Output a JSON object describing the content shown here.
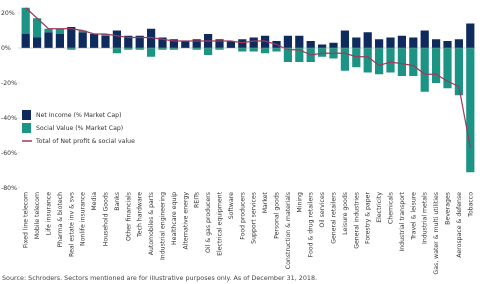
{
  "chart_data": {
    "type": "bar",
    "stacked": true,
    "categories": [
      "Fixed line telecom",
      "Mobile telecom",
      "Life insurance",
      "Pharma & biotech",
      "Real estate inv & svs",
      "Nonlife insurance",
      "Media",
      "Household Goods",
      "Banks",
      "Other financials",
      "Tech hardware",
      "Automobiles & parts",
      "Industrial engineering",
      "Healthcare equip",
      "Alternative energy",
      "REITs",
      "Oil & gas producers",
      "Electrical equipment",
      "Software",
      "Food producers",
      "Support services",
      "Market",
      "Personal goods",
      "Construction & materials",
      "Mining",
      "Food & drug retailers",
      "Oil services",
      "General retailers",
      "Leisure goods",
      "General industries",
      "Forestry & paper",
      "Electricity",
      "Chemicals",
      "Industrial transport",
      "Travel & leisure",
      "Industrial metals",
      "Gas, water & multi utilities",
      "Beverages",
      "Aerospace & defense",
      "Tobacco"
    ],
    "series": [
      {
        "name": "Net Income (% Market Cap)",
        "color": "#0f2a5c",
        "values": [
          8,
          6,
          9,
          8,
          12,
          9,
          8,
          7,
          10,
          7,
          7,
          11,
          6,
          5,
          4,
          5,
          8,
          5,
          4,
          5,
          6,
          7,
          4,
          7,
          7,
          4,
          2,
          3,
          10,
          6,
          9,
          5,
          6,
          7,
          6,
          10,
          5,
          4,
          5,
          14
        ]
      },
      {
        "name": "Social Value (% Market Cap)",
        "color": "#1c9485",
        "values": [
          15,
          11,
          2,
          3,
          -1,
          1,
          0,
          1,
          -3,
          -1,
          -1,
          -5,
          -1,
          -1,
          0,
          -1,
          -4,
          -1,
          0,
          -2,
          -2,
          -3,
          -2,
          -8,
          -8,
          -8,
          -5,
          -6,
          -13,
          -11,
          -14,
          -15,
          -14,
          -16,
          -16,
          -25,
          -20,
          -23,
          -27,
          -71
        ]
      },
      {
        "name": "Total of Net profit & social value",
        "color": "#a0385a",
        "kind": "line",
        "values": [
          23,
          17,
          11,
          11,
          11,
          10,
          8,
          8,
          7,
          6,
          6,
          6,
          5,
          4,
          4,
          4,
          4,
          4,
          4,
          3,
          4,
          4,
          2,
          -1,
          -1,
          -4,
          -3,
          -3,
          -3,
          -5,
          -5,
          -10,
          -8,
          -9,
          -10,
          -15,
          -15,
          -19,
          -22,
          -57
        ]
      }
    ],
    "ylim": [
      -80,
      24
    ],
    "yticks": [
      {
        "value": 20,
        "label": "20%"
      },
      {
        "value": 0,
        "label": "0%"
      },
      {
        "value": -20,
        "label": "-20%"
      },
      {
        "value": -40,
        "label": "-40%"
      },
      {
        "value": -60,
        "label": "-60%"
      },
      {
        "value": -80,
        "label": "-80%"
      }
    ],
    "grid": false,
    "legend": "left",
    "source": "Source: Schroders. Sectors mentioned are for illustrative purposes only. As of December 31, 2018."
  }
}
